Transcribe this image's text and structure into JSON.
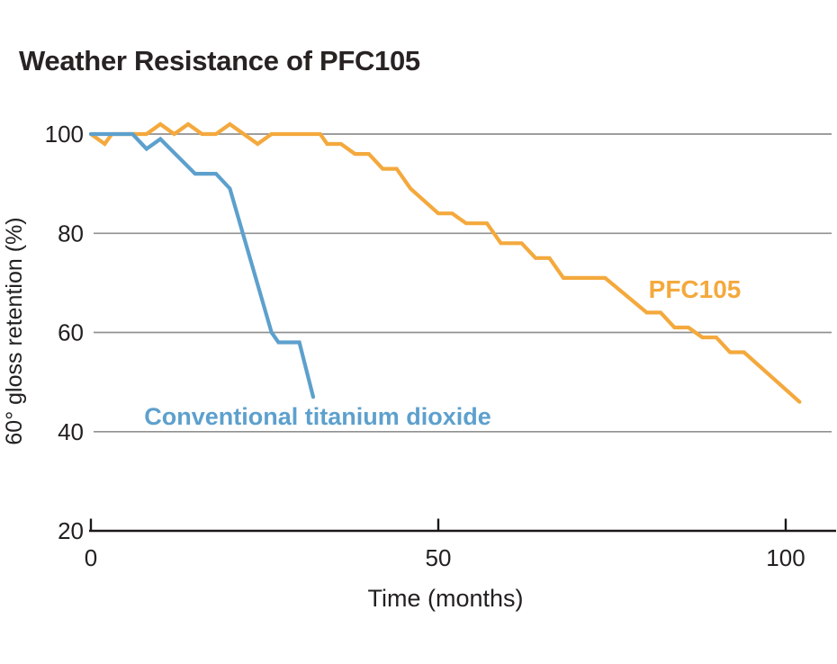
{
  "chart": {
    "title": "Weather Resistance of PFC105"
  },
  "chart_data": {
    "type": "line",
    "title": "Weather Resistance of PFC105",
    "xlabel": "Time (months)",
    "ylabel": "60° gloss retention (%)",
    "xlim": [
      0,
      107
    ],
    "ylim": [
      20,
      105
    ],
    "x_ticks": [
      0,
      50,
      100
    ],
    "y_ticks": [
      100,
      80,
      60,
      40,
      20
    ],
    "gridlines_at": [
      100,
      80,
      60,
      40
    ],
    "grid": "horizontal-only",
    "legend_position": "inline-labels",
    "series": [
      {
        "name": "PFC105",
        "color": "#F4A93D",
        "points": [
          [
            0,
            100
          ],
          [
            2,
            98
          ],
          [
            3,
            100
          ],
          [
            6,
            100
          ],
          [
            8,
            100
          ],
          [
            10,
            102
          ],
          [
            12,
            100
          ],
          [
            14,
            102
          ],
          [
            16,
            100
          ],
          [
            18,
            100
          ],
          [
            20,
            102
          ],
          [
            24,
            98
          ],
          [
            26,
            100
          ],
          [
            33,
            100
          ],
          [
            34,
            98
          ],
          [
            36,
            98
          ],
          [
            38,
            96
          ],
          [
            40,
            96
          ],
          [
            42,
            93
          ],
          [
            44,
            93
          ],
          [
            46,
            89
          ],
          [
            50,
            84
          ],
          [
            52,
            84
          ],
          [
            54,
            82
          ],
          [
            57,
            82
          ],
          [
            59,
            78
          ],
          [
            62,
            78
          ],
          [
            64,
            75
          ],
          [
            66,
            75
          ],
          [
            68,
            71
          ],
          [
            74,
            71
          ],
          [
            80,
            64
          ],
          [
            82,
            64
          ],
          [
            84,
            61
          ],
          [
            86,
            61
          ],
          [
            88,
            59
          ],
          [
            90,
            59
          ],
          [
            92,
            56
          ],
          [
            94,
            56
          ],
          [
            102,
            46
          ]
        ]
      },
      {
        "name": "Conventional titanium dioxide",
        "color": "#5DA0CD",
        "points": [
          [
            0,
            100
          ],
          [
            6,
            100
          ],
          [
            8,
            97
          ],
          [
            10,
            99
          ],
          [
            15,
            92
          ],
          [
            18,
            92
          ],
          [
            20,
            89
          ],
          [
            26,
            60
          ],
          [
            27,
            58
          ],
          [
            30,
            58
          ],
          [
            32,
            47
          ]
        ]
      }
    ]
  },
  "colors": {
    "gridline": "#919191",
    "axis": "#1B1917",
    "text": "#232021",
    "pfc105": "#F4A93D",
    "conventional": "#5DA0CD"
  }
}
